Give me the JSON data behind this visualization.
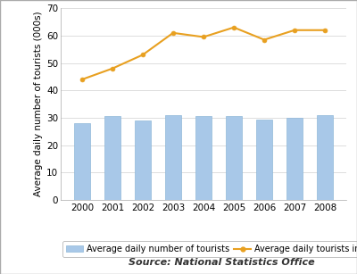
{
  "years": [
    2000,
    2001,
    2002,
    2003,
    2004,
    2005,
    2006,
    2007,
    2008
  ],
  "bar_values": [
    28,
    30.5,
    29,
    31,
    30.5,
    30.5,
    29.5,
    30,
    31
  ],
  "line_values": [
    44,
    48,
    53,
    61,
    59.5,
    63,
    58.5,
    62,
    62
  ],
  "bar_color": "#a8c8e8",
  "bar_edge_color": "#7aaan0",
  "line_color": "#e8a020",
  "ylabel": "Average daily number of tourists (000s)",
  "ylim": [
    0,
    70
  ],
  "yticks": [
    0,
    10,
    20,
    30,
    40,
    50,
    60,
    70
  ],
  "legend_bar_label": "Average daily number of tourists",
  "legend_line_label": "Average daily tourists in August",
  "source_text": "Source: National Statistics Office",
  "background_color": "#ffffff",
  "grid_color": "#d0d0d0",
  "axis_fontsize": 7.5,
  "legend_fontsize": 7,
  "source_fontsize": 8
}
